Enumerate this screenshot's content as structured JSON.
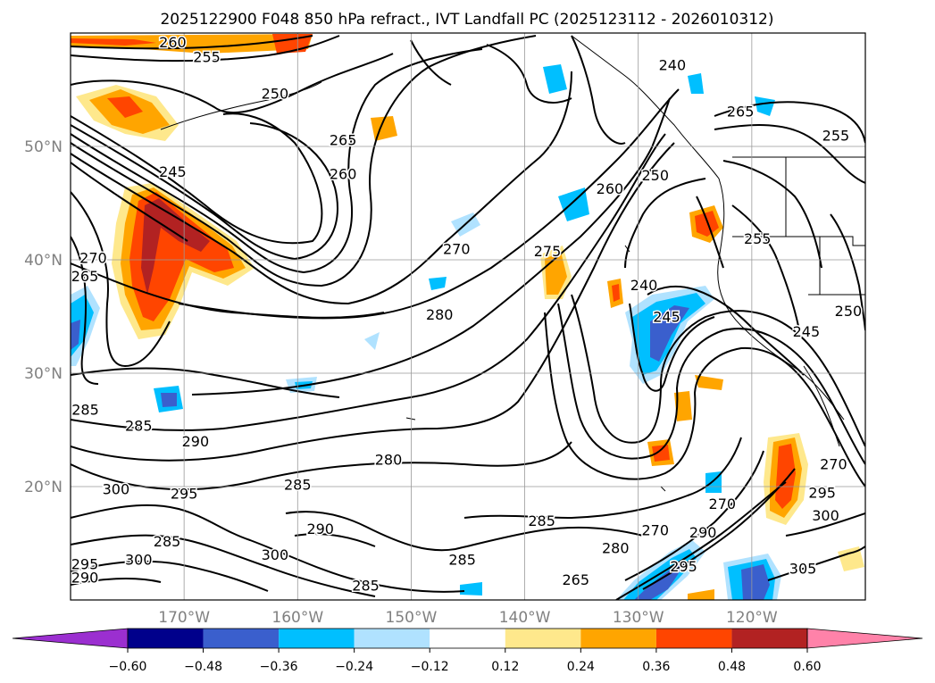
{
  "chart_data": {
    "type": "contour_map",
    "title": "2025122900 F048 850 hPa refract., IVT Landfall PC (2025123112 - 2026010312)",
    "xlabel": "",
    "ylabel": "",
    "lon_range": [
      -180,
      -110
    ],
    "lat_range": [
      10,
      60
    ],
    "grid": true,
    "lon_ticks": [
      {
        "value": -170,
        "label": "170°W"
      },
      {
        "value": -160,
        "label": "160°W"
      },
      {
        "value": -150,
        "label": "150°W"
      },
      {
        "value": -140,
        "label": "140°W"
      },
      {
        "value": -130,
        "label": "130°W"
      },
      {
        "value": -120,
        "label": "120°W"
      }
    ],
    "lat_ticks": [
      {
        "value": 20,
        "label": "20°N"
      },
      {
        "value": 30,
        "label": "30°N"
      },
      {
        "value": 40,
        "label": "40°N"
      },
      {
        "value": 50,
        "label": "50°N"
      }
    ],
    "contour_labels": [
      {
        "label": "260",
        "lon": -171,
        "lat": 59.4
      },
      {
        "label": "255",
        "lon": -168,
        "lat": 57.9
      },
      {
        "label": "250",
        "lon": -162,
        "lat": 54.7
      },
      {
        "label": "245",
        "lon": -171,
        "lat": 47.8
      },
      {
        "label": "265",
        "lon": -156,
        "lat": 50.6
      },
      {
        "label": "260",
        "lon": -156,
        "lat": 47.6
      },
      {
        "label": "270",
        "lon": -146,
        "lat": 41.0
      },
      {
        "label": "275",
        "lon": -138,
        "lat": 40.8
      },
      {
        "label": "280",
        "lon": -147.5,
        "lat": 35.2
      },
      {
        "label": "265",
        "lon": -178.8,
        "lat": 38.6
      },
      {
        "label": "270",
        "lon": -178,
        "lat": 40.2
      },
      {
        "label": "285",
        "lon": -178.7,
        "lat": 26.8
      },
      {
        "label": "285",
        "lon": -174,
        "lat": 25.4
      },
      {
        "label": "290",
        "lon": -169,
        "lat": 24.0
      },
      {
        "label": "300",
        "lon": -176,
        "lat": 19.8
      },
      {
        "label": "295",
        "lon": -170,
        "lat": 19.4
      },
      {
        "label": "285",
        "lon": -160,
        "lat": 20.2
      },
      {
        "label": "280",
        "lon": -152,
        "lat": 22.4
      },
      {
        "label": "290",
        "lon": -158,
        "lat": 16.3
      },
      {
        "label": "285",
        "lon": -171.5,
        "lat": 15.2
      },
      {
        "label": "300",
        "lon": -174,
        "lat": 13.6
      },
      {
        "label": "300",
        "lon": -162,
        "lat": 14.0
      },
      {
        "label": "295",
        "lon": -179,
        "lat": 13.2
      },
      {
        "label": "290",
        "lon": -180,
        "lat": 12.0
      },
      {
        "label": "285",
        "lon": -154,
        "lat": 11.3
      },
      {
        "label": "285",
        "lon": -145.5,
        "lat": 13.6
      },
      {
        "label": "285",
        "lon": -138.5,
        "lat": 17.0
      },
      {
        "label": "280",
        "lon": -132,
        "lat": 14.6
      },
      {
        "label": "265",
        "lon": -135.5,
        "lat": 11.8
      },
      {
        "label": "270",
        "lon": -128.5,
        "lat": 16.2
      },
      {
        "label": "295",
        "lon": -126,
        "lat": 13.0
      },
      {
        "label": "290",
        "lon": -124.3,
        "lat": 16.0
      },
      {
        "label": "305",
        "lon": -115.5,
        "lat": 12.8
      },
      {
        "label": "300",
        "lon": -113.5,
        "lat": 17.5
      },
      {
        "label": "295",
        "lon": -113.8,
        "lat": 19.5
      },
      {
        "label": "270",
        "lon": -122.6,
        "lat": 18.5
      },
      {
        "label": "270",
        "lon": -112.8,
        "lat": 22.0
      },
      {
        "label": "240",
        "lon": -129.5,
        "lat": 37.8
      },
      {
        "label": "245",
        "lon": -127.5,
        "lat": 35.0
      },
      {
        "label": "250",
        "lon": -128.5,
        "lat": 47.5
      },
      {
        "label": "260",
        "lon": -132.5,
        "lat": 46.3
      },
      {
        "label": "255",
        "lon": -119.5,
        "lat": 41.9
      },
      {
        "label": "265",
        "lon": -121,
        "lat": 53.1
      },
      {
        "label": "255",
        "lon": -112.6,
        "lat": 51.0
      },
      {
        "label": "245",
        "lon": -115.2,
        "lat": 33.7
      },
      {
        "label": "250",
        "lon": -111.5,
        "lat": 35.5
      },
      {
        "label": "240",
        "lon": -127,
        "lat": 57.2
      }
    ],
    "colorbar": {
      "ticks": [
        "−0.60",
        "−0.48",
        "−0.36",
        "−0.24",
        "−0.12",
        "0.12",
        "0.24",
        "0.36",
        "0.48",
        "0.60"
      ],
      "colors": [
        "#9b2fd0",
        "#00008b",
        "#3a5fcd",
        "#00bfff",
        "#b0e2ff",
        "#ffffff",
        "#fee88c",
        "#ffa500",
        "#ff4500",
        "#b22222",
        "#ff82a9"
      ]
    }
  }
}
